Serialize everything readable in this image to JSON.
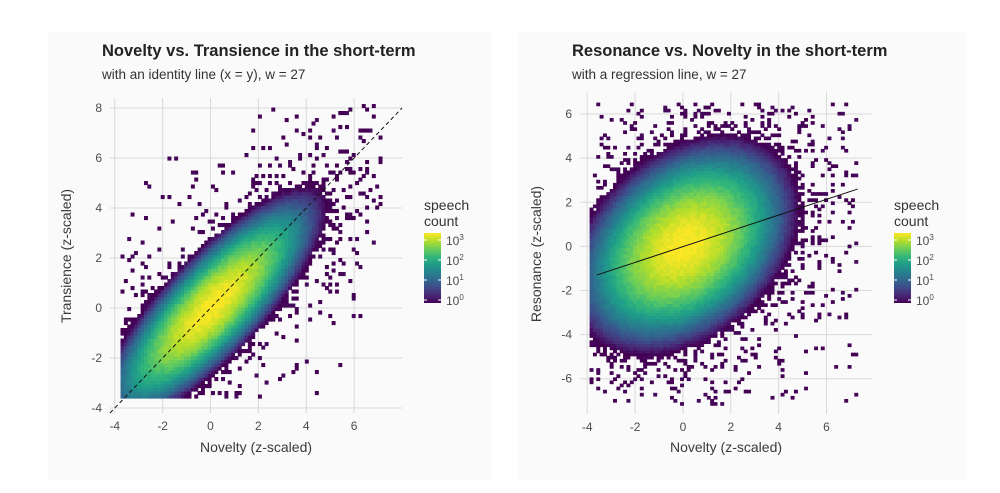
{
  "chart_data": [
    {
      "type": "heatmap",
      "title": "Novelty vs. Transience in the short-term",
      "subtitle": "with an identity line (x = y), w = 27",
      "xlabel": "Novelty (z-scaled)",
      "ylabel": "Transience (z-scaled)",
      "xlim": [
        -4.2,
        8.0
      ],
      "ylim": [
        -4.2,
        8.4
      ],
      "xticks": [
        -4,
        -2,
        0,
        2,
        4,
        6
      ],
      "yticks": [
        -4,
        -2,
        0,
        2,
        4,
        6,
        8
      ],
      "xtick_labels": [
        "-4",
        "-2",
        "0",
        "2",
        "4",
        "6"
      ],
      "ytick_labels": [
        "-4",
        "-2",
        "0",
        "2",
        "4",
        "6",
        "8"
      ],
      "density": {
        "center": [
          0,
          0
        ],
        "sx": 1.25,
        "sy": 1.25,
        "rho": 0.82,
        "peak_count": 1500,
        "x_range": [
          -3.9,
          7.2
        ],
        "y_range": [
          -3.6,
          8.1
        ]
      },
      "reference_line": {
        "kind": "identity",
        "slope": 1,
        "intercept": 0,
        "style": "dashed"
      },
      "legend": {
        "title_lines": [
          "speech",
          "count"
        ],
        "base": "10",
        "exponents": [
          "3",
          "2",
          "1",
          "0"
        ],
        "colorscale": "viridis",
        "scale": "log10"
      }
    },
    {
      "type": "heatmap",
      "title": "Resonance vs. Novelty in the short-term",
      "subtitle": "with a regression line, w = 27",
      "xlabel": "Novelty (z-scaled)",
      "ylabel": "Resonance (z-scaled)",
      "xlim": [
        -4.3,
        7.9
      ],
      "ylim": [
        -7.6,
        7.0
      ],
      "xticks": [
        -4,
        -2,
        0,
        2,
        4,
        6
      ],
      "yticks": [
        -6,
        -4,
        -2,
        0,
        2,
        4,
        6
      ],
      "xtick_labels": [
        "-4",
        "-2",
        "0",
        "2",
        "4",
        "6"
      ],
      "ytick_labels": [
        "-6",
        "-4",
        "-2",
        "0",
        "2",
        "4",
        "6"
      ],
      "density": {
        "center": [
          0,
          0
        ],
        "sx": 1.25,
        "sy": 1.3,
        "rho": 0.34,
        "peak_count": 1500,
        "x_range": [
          -3.9,
          7.2
        ],
        "y_range": [
          -7.2,
          6.5
        ]
      },
      "reference_line": {
        "kind": "regression",
        "x": [
          -3.6,
          7.3
        ],
        "y": [
          -1.3,
          2.6
        ],
        "style": "solid"
      },
      "legend": {
        "title_lines": [
          "speech",
          "count"
        ],
        "base": "10",
        "exponents": [
          "3",
          "2",
          "1",
          "0"
        ],
        "colorscale": "viridis",
        "scale": "log10"
      }
    }
  ],
  "colors": {
    "viridis": [
      "#440154",
      "#482878",
      "#3e4a89",
      "#31688e",
      "#26828e",
      "#1f9e89",
      "#35b779",
      "#6ece58",
      "#b5de2b",
      "#fde725"
    ],
    "panel_background": "#fafafa",
    "grid": "#d9d9d9",
    "line": "#111111"
  }
}
